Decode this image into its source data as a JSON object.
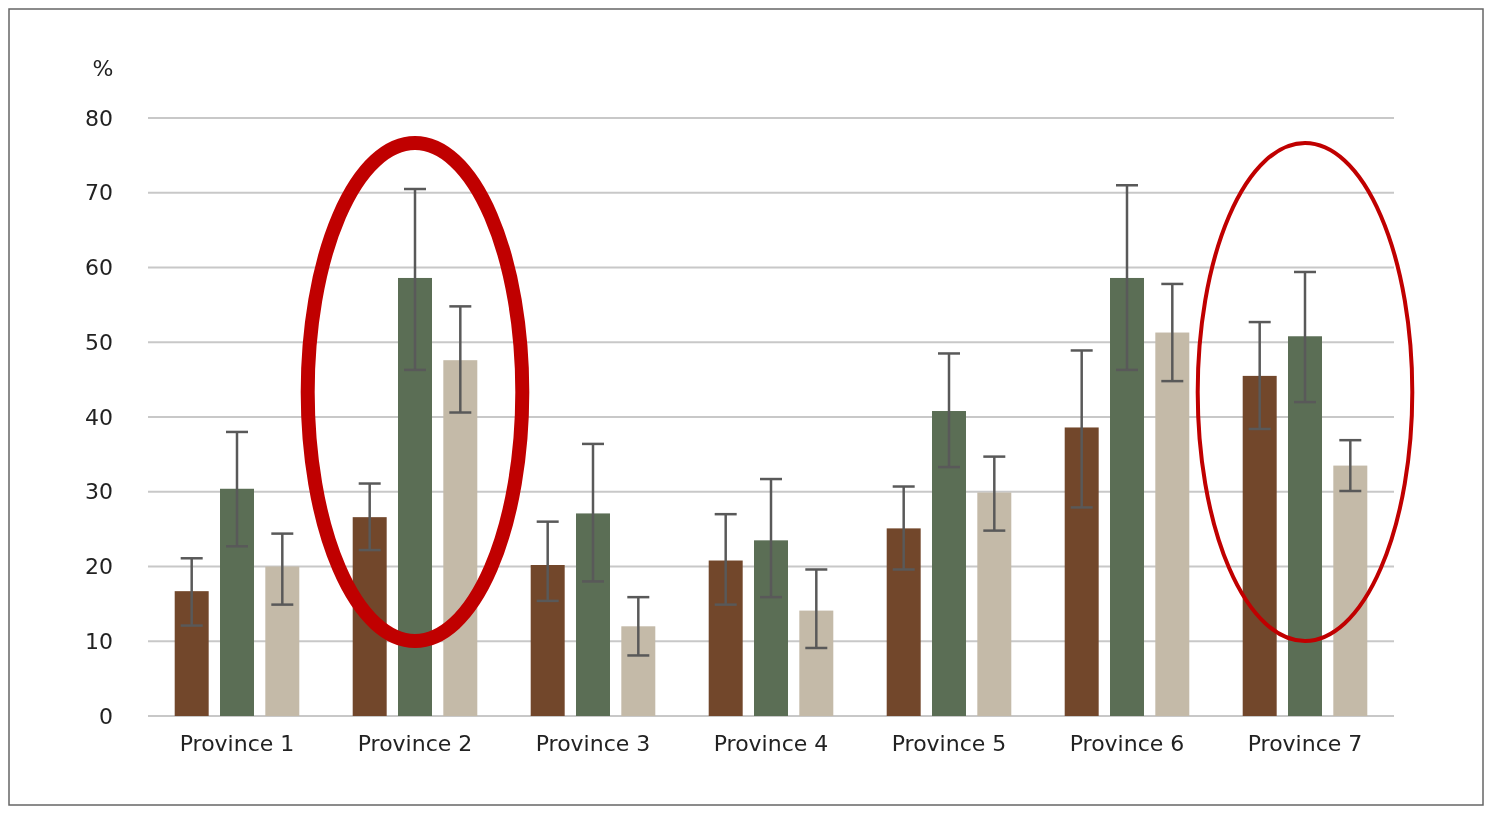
{
  "chart_data": {
    "type": "bar",
    "ylabel": "%",
    "categories": [
      "Province 1",
      "Province 2",
      "Province 3",
      "Province 4",
      "Province 5",
      "Province 6",
      "Province 7"
    ],
    "series": [
      {
        "color": "#72472b",
        "values": [
          16.7,
          26.6,
          20.2,
          20.8,
          25.1,
          38.6,
          45.5
        ],
        "errors": [
          [
            12.1,
            21.1
          ],
          [
            22.2,
            31.1
          ],
          [
            15.4,
            26
          ],
          [
            14.9,
            27
          ],
          [
            19.6,
            30.7
          ],
          [
            27.9,
            48.9
          ],
          [
            38.4,
            52.7
          ]
        ]
      },
      {
        "color": "#5b6e55",
        "values": [
          30.4,
          58.6,
          27.1,
          23.5,
          40.8,
          58.6,
          50.8
        ],
        "errors": [
          [
            22.7,
            38
          ],
          [
            46.3,
            70.5
          ],
          [
            18,
            36.4
          ],
          [
            15.9,
            31.7
          ],
          [
            33.3,
            48.5
          ],
          [
            46.3,
            71
          ],
          [
            42,
            59.4
          ]
        ]
      },
      {
        "color": "#c4baa8",
        "values": [
          20,
          47.6,
          12,
          14.1,
          29.9,
          51.3,
          33.5
        ],
        "errors": [
          [
            14.9,
            24.4
          ],
          [
            40.6,
            54.8
          ],
          [
            8.1,
            15.9
          ],
          [
            9.1,
            19.6
          ],
          [
            24.8,
            34.7
          ],
          [
            44.8,
            57.8
          ],
          [
            30.1,
            36.9
          ]
        ]
      }
    ],
    "ylim": [
      0,
      80
    ],
    "yticks": [
      0,
      10,
      20,
      30,
      40,
      50,
      60,
      70,
      80
    ],
    "grid": "y"
  }
}
